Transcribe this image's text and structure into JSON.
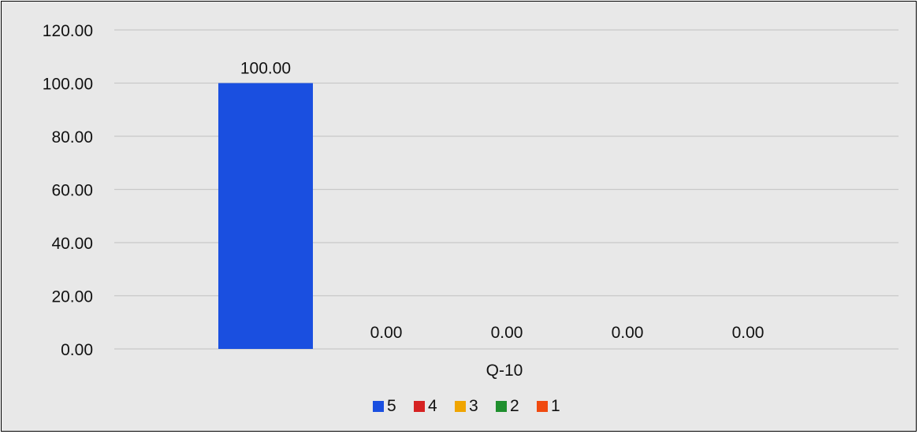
{
  "chart_data": {
    "type": "bar",
    "categories": [
      "Q-10"
    ],
    "series": [
      {
        "name": "5",
        "values": [
          100.0
        ],
        "color": "#1a4fe0"
      },
      {
        "name": "4",
        "values": [
          0.0
        ],
        "color": "#d62222"
      },
      {
        "name": "3",
        "values": [
          0.0
        ],
        "color": "#f0a500"
      },
      {
        "name": "2",
        "values": [
          0.0
        ],
        "color": "#1f8f2e"
      },
      {
        "name": "1",
        "values": [
          0.0
        ],
        "color": "#f04a10"
      }
    ],
    "data_labels": [
      "100.00",
      "0.00",
      "0.00",
      "0.00",
      "0.00"
    ],
    "y_ticks": [
      "0.00",
      "20.00",
      "40.00",
      "60.00",
      "80.00",
      "100.00",
      "120.00"
    ],
    "ylim": [
      0,
      120
    ],
    "grid": true,
    "legend_position": "bottom",
    "title": "",
    "xlabel": "",
    "ylabel": ""
  }
}
